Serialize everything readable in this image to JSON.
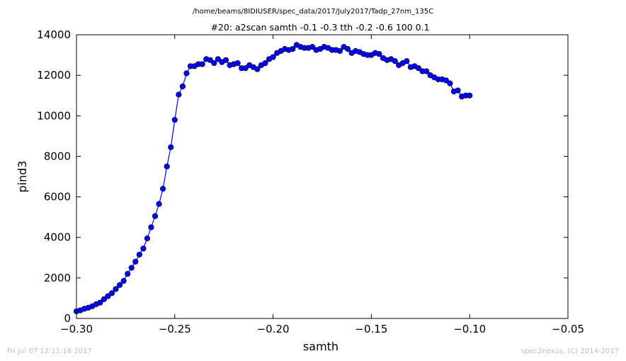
{
  "header": {
    "path": "/home/beams/8IDIUSER/spec_data/2017/July2017/Tadp_27nm_135C"
  },
  "footer": {
    "timestamp": "Fri Jul 07 12:11:18 2017",
    "credit": "spec2nexus, (C) 2014-2017"
  },
  "chart_data": {
    "type": "line",
    "title": "#20: a2scan  samth -0.1 -0.3  tth -0.2 -0.6  100 0.1",
    "xlabel": "samth",
    "ylabel": "pind3",
    "xlim": [
      -0.3,
      -0.05
    ],
    "ylim": [
      0,
      14000
    ],
    "xticks": [
      -0.3,
      -0.25,
      -0.2,
      -0.15,
      -0.1,
      -0.05
    ],
    "xtick_labels": [
      "−0.30",
      "−0.25",
      "−0.20",
      "−0.15",
      "−0.10",
      "−0.05"
    ],
    "yticks": [
      0,
      2000,
      4000,
      6000,
      8000,
      10000,
      12000,
      14000
    ],
    "ytick_labels": [
      "0",
      "2000",
      "4000",
      "6000",
      "8000",
      "10000",
      "12000",
      "14000"
    ],
    "grid": false,
    "color": "#0000ff",
    "marker": "circle",
    "x": [
      -0.3,
      -0.298,
      -0.296,
      -0.294,
      -0.292,
      -0.29,
      -0.288,
      -0.286,
      -0.284,
      -0.282,
      -0.28,
      -0.278,
      -0.276,
      -0.274,
      -0.272,
      -0.27,
      -0.268,
      -0.266,
      -0.264,
      -0.262,
      -0.26,
      -0.258,
      -0.256,
      -0.254,
      -0.252,
      -0.25,
      -0.248,
      -0.246,
      -0.244,
      -0.242,
      -0.24,
      -0.238,
      -0.236,
      -0.234,
      -0.232,
      -0.23,
      -0.228,
      -0.226,
      -0.224,
      -0.222,
      -0.22,
      -0.218,
      -0.216,
      -0.214,
      -0.212,
      -0.21,
      -0.208,
      -0.206,
      -0.204,
      -0.202,
      -0.2,
      -0.198,
      -0.196,
      -0.194,
      -0.192,
      -0.19,
      -0.188,
      -0.186,
      -0.184,
      -0.182,
      -0.18,
      -0.178,
      -0.176,
      -0.174,
      -0.172,
      -0.17,
      -0.168,
      -0.166,
      -0.164,
      -0.162,
      -0.16,
      -0.158,
      -0.156,
      -0.154,
      -0.152,
      -0.15,
      -0.148,
      -0.146,
      -0.144,
      -0.142,
      -0.14,
      -0.138,
      -0.136,
      -0.134,
      -0.132,
      -0.13,
      -0.128,
      -0.126,
      -0.124,
      -0.122,
      -0.12,
      -0.118,
      -0.116,
      -0.114,
      -0.112,
      -0.11,
      -0.108,
      -0.106,
      -0.104,
      -0.102,
      -0.1
    ],
    "y": [
      350,
      400,
      480,
      530,
      600,
      700,
      780,
      950,
      1100,
      1250,
      1450,
      1650,
      1850,
      2200,
      2500,
      2800,
      3150,
      3450,
      3950,
      4500,
      5050,
      5650,
      6400,
      7500,
      8450,
      9800,
      11050,
      11450,
      12100,
      12450,
      12450,
      12550,
      12550,
      12800,
      12750,
      12600,
      12800,
      12650,
      12750,
      12500,
      12550,
      12600,
      12350,
      12350,
      12500,
      12400,
      12300,
      12500,
      12600,
      12800,
      12900,
      13100,
      13200,
      13300,
      13250,
      13300,
      13500,
      13400,
      13350,
      13350,
      13400,
      13250,
      13300,
      13400,
      13350,
      13250,
      13250,
      13200,
      13400,
      13300,
      13100,
      13200,
      13150,
      13050,
      13000,
      13000,
      13100,
      13050,
      12850,
      12750,
      12800,
      12700,
      12500,
      12600,
      12700,
      12400,
      12450,
      12350,
      12200,
      12200,
      12000,
      11900,
      11800,
      11800,
      11750,
      11600,
      11200,
      11250,
      10950,
      11000,
      11000
    ]
  }
}
